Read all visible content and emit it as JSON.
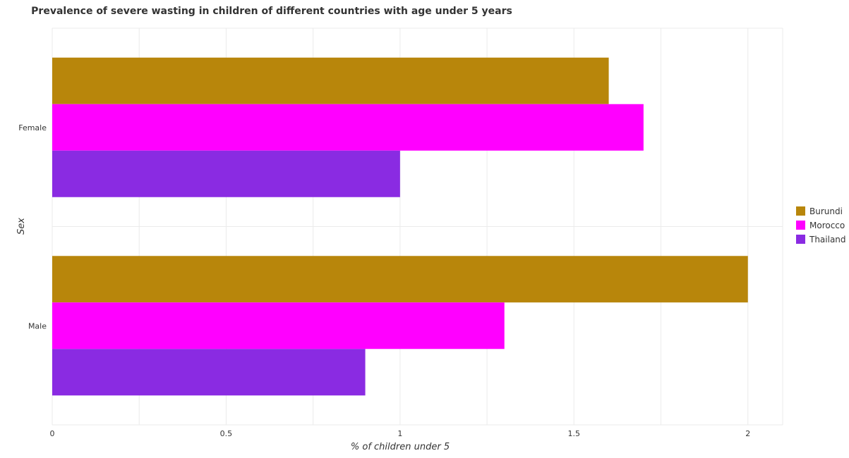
{
  "chart_data": {
    "type": "bar",
    "orientation": "horizontal",
    "title": "Prevalence of severe wasting in children of different countries with age under 5 years",
    "xlabel": "% of children under 5",
    "ylabel": "Sex",
    "categories": [
      "Female",
      "Male"
    ],
    "series": [
      {
        "name": "Burundi",
        "color": "#b8860b",
        "values": [
          1.6,
          2.0
        ]
      },
      {
        "name": "Morocco",
        "color": "#ff00ff",
        "values": [
          1.7,
          1.3
        ]
      },
      {
        "name": "Thailand",
        "color": "#8a2be2",
        "values": [
          1.0,
          0.9
        ]
      }
    ],
    "xlim": [
      0,
      2.1
    ],
    "xticks": [
      0,
      0.5,
      1,
      1.5,
      2
    ],
    "xtick_labels": [
      "0",
      "0.5",
      "1",
      "1.5",
      "2"
    ],
    "grid": true,
    "legend_position": "right"
  }
}
